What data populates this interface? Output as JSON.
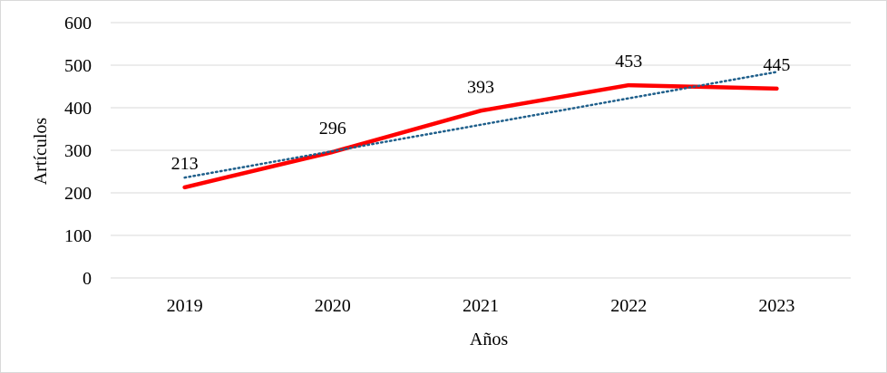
{
  "chart_data": {
    "type": "line",
    "categories": [
      "2019",
      "2020",
      "2021",
      "2022",
      "2023"
    ],
    "series": [
      {
        "values": [
          213,
          296,
          393,
          453,
          445
        ],
        "color": "#ff0000"
      }
    ],
    "trendline": {
      "type": "linear",
      "color": "#1f5f8b"
    },
    "data_labels": [
      "213",
      "296",
      "393",
      "453",
      "445"
    ],
    "xlabel": "Años",
    "ylabel": "Artículos",
    "ylim": [
      0,
      600
    ],
    "yticks": [
      0,
      100,
      200,
      300,
      400,
      500,
      600
    ],
    "ytick_labels": [
      "0",
      "100",
      "200",
      "300",
      "400",
      "500",
      "600"
    ],
    "grid": "horizontal",
    "legend": "none"
  }
}
